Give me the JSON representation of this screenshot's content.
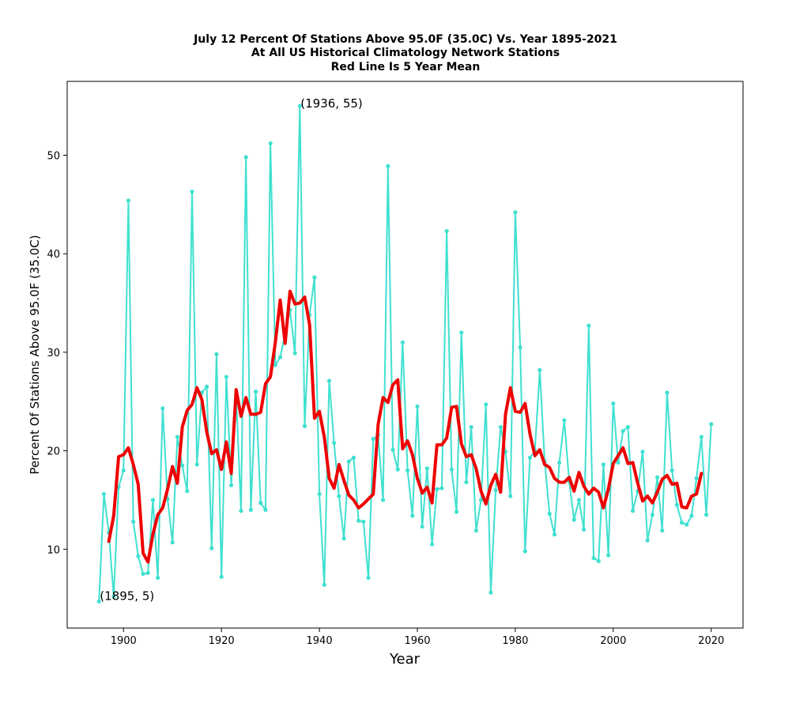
{
  "chart_data": {
    "type": "line",
    "title_lines": [
      "July 12 Percent Of Stations Above 95.0F (35.0C) Vs. Year 1895-2021",
      "At All US Historical Climatology Network Stations",
      "Red Line Is 5 Year Mean"
    ],
    "xlabel": "Year",
    "ylabel": "Percent Of Stations Above 95.0F (35.0C)",
    "xlim": [
      1888.5,
      2026.5
    ],
    "ylim": [
      2,
      57.5
    ],
    "xticks": [
      1900,
      1920,
      1940,
      1960,
      1980,
      2000,
      2020
    ],
    "yticks": [
      10,
      20,
      30,
      40,
      50
    ],
    "colors": {
      "series": "#40e0d0",
      "mean": "#ee0000"
    },
    "annotations": [
      {
        "text": "(1936, 55)",
        "x": 1936,
        "y": 55
      },
      {
        "text": "(1895, 5)",
        "x": 1895,
        "y": 5
      }
    ],
    "series": [
      {
        "name": "Percent of stations",
        "x_start": 1895,
        "values": [
          4.7,
          15.6,
          11.7,
          5.2,
          16.3,
          18.0,
          45.4,
          12.8,
          9.3,
          7.5,
          7.6,
          15.0,
          7.1,
          24.3,
          15.1,
          10.7,
          21.4,
          18.5,
          15.9,
          46.3,
          18.6,
          25.9,
          26.5,
          10.1,
          29.8,
          7.2,
          27.5,
          16.5,
          25.6,
          13.9,
          49.8,
          14.0,
          26.0,
          14.7,
          14.0,
          51.2,
          28.7,
          29.5,
          31.9,
          34.3,
          29.9,
          55.0,
          22.5,
          33.8,
          37.6,
          15.6,
          6.4,
          27.1,
          20.8,
          15.4,
          11.1,
          18.9,
          19.3,
          12.9,
          12.8,
          7.1,
          21.2,
          21.6,
          15.0,
          48.9,
          20.1,
          18.1,
          31.0,
          18.0,
          13.4,
          24.5,
          12.3,
          18.2,
          10.5,
          16.1,
          16.2,
          42.3,
          18.1,
          13.8,
          32.0,
          16.8,
          22.4,
          11.9,
          15.0,
          24.7,
          5.6,
          16.0,
          22.4,
          19.9,
          15.4,
          44.2,
          30.5,
          9.8,
          19.3,
          20.0,
          28.2,
          18.9,
          13.6,
          11.5,
          18.8,
          23.1,
          16.9,
          13.0,
          15.0,
          12.0,
          32.7,
          9.1,
          8.8,
          18.6,
          9.4,
          24.8,
          18.8,
          22.0,
          22.4,
          13.9,
          15.9,
          19.9,
          10.9,
          13.5,
          17.3,
          11.9,
          25.9,
          18.0,
          14.5,
          12.7,
          12.5,
          13.4,
          17.2,
          21.4,
          13.5,
          22.7
        ]
      },
      {
        "name": "5 Year Mean",
        "x_start": 1897,
        "values": [
          10.8,
          13.4,
          19.4,
          19.6,
          20.3,
          18.6,
          16.6,
          9.6,
          8.7,
          11.5,
          13.5,
          14.2,
          16.1,
          18.4,
          16.7,
          22.4,
          24.1,
          24.7,
          26.4,
          25.2,
          21.9,
          19.7,
          20.1,
          18.1,
          20.9,
          17.7,
          26.2,
          23.5,
          25.4,
          23.7,
          23.7,
          23.9,
          26.8,
          27.5,
          31.0,
          35.3,
          30.9,
          36.2,
          34.9,
          35.0,
          35.6,
          32.8,
          23.3,
          24.0,
          21.4,
          17.2,
          16.2,
          18.6,
          17.0,
          15.5,
          15.0,
          14.2,
          14.6,
          15.1,
          15.6,
          22.7,
          25.4,
          24.9,
          26.7,
          27.2,
          20.2,
          21.0,
          19.6,
          17.2,
          15.7,
          16.3,
          14.7,
          20.6,
          20.6,
          21.3,
          24.4,
          24.5,
          20.7,
          19.4,
          19.6,
          18.2,
          15.9,
          14.6,
          16.5,
          17.6,
          15.8,
          23.7,
          26.4,
          24.0,
          23.9,
          24.8,
          21.7,
          19.5,
          20.1,
          18.6,
          18.3,
          17.2,
          16.8,
          16.8,
          17.3,
          15.9,
          17.8,
          16.4,
          15.6,
          16.2,
          15.8,
          14.2,
          16.1,
          18.7,
          19.5,
          20.3,
          18.7,
          18.8,
          16.7,
          14.9,
          15.4,
          14.7,
          15.8,
          17.1,
          17.5,
          16.6,
          16.7,
          14.3,
          14.2,
          15.4,
          15.6,
          17.7
        ]
      }
    ]
  }
}
